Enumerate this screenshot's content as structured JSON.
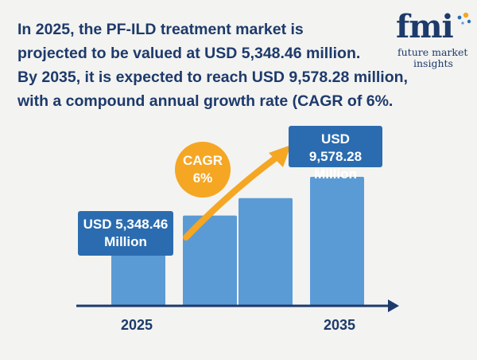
{
  "headline": {
    "line1": "In 2025, the PF-ILD treatment market is",
    "line2": "projected to be valued at USD 5,348.46 million.",
    "line3": "By 2035, it is expected to reach USD 9,578.28 million,",
    "line4": "with a compound annual growth rate (CAGR of 6%."
  },
  "logo": {
    "mark": "fmi",
    "line1": "future market",
    "line2": "insights"
  },
  "colors": {
    "bar": "#5b9bd5",
    "headline": "#1d3a6b",
    "value_box": "#2b6cb0",
    "cagr": "#f5a623",
    "axis": "#1d3a6b"
  },
  "chart_data": {
    "type": "bar",
    "categories": [
      "2025",
      "",
      "",
      "2035"
    ],
    "values": [
      5348.46,
      6700,
      8000,
      9578.28
    ],
    "x_tick_labels": [
      "2025",
      "2035"
    ],
    "annotations": {
      "start_value": {
        "line1": "USD 5,348.46",
        "line2": "Million"
      },
      "end_value": {
        "line1": "USD 9,578.28",
        "line2": "Million"
      },
      "cagr": {
        "line1": "CAGR",
        "line2": "6%"
      }
    },
    "title": "",
    "xlabel": "",
    "ylabel": "",
    "grid": false
  }
}
